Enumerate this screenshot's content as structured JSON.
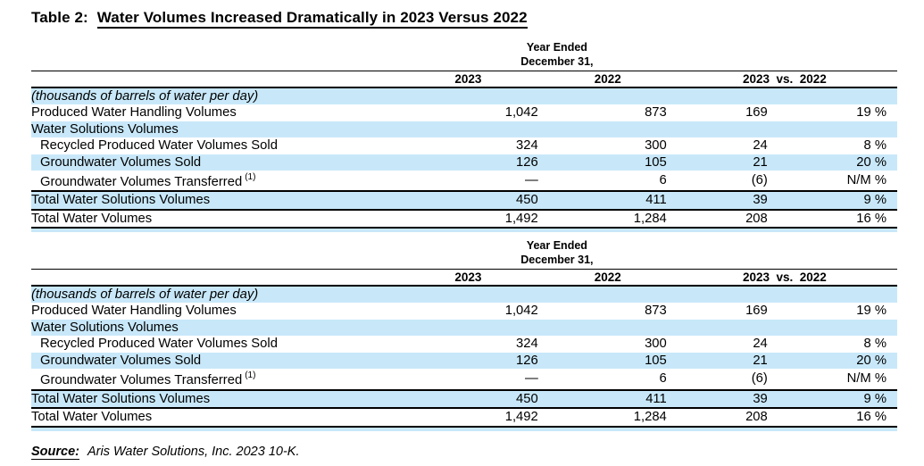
{
  "title": {
    "prefix": "Table 2:",
    "main": "Water Volumes Increased Dramatically in 2023 Versus 2022"
  },
  "table": {
    "period_header": {
      "line1": "Year Ended",
      "line2": "December 31,"
    },
    "year_columns": [
      "2023",
      "2022"
    ],
    "comparison_header": "2023  vs.  2022",
    "rows": [
      {
        "label": "(thousands of barrels of water per day)",
        "italic": true,
        "shade": true,
        "values": [
          "",
          "",
          "",
          ""
        ]
      },
      {
        "label": "Produced Water Handling Volumes",
        "values": [
          "1,042",
          "873",
          "169",
          "19 %"
        ]
      },
      {
        "label": "Water Solutions Volumes",
        "shade": true,
        "values": [
          "",
          "",
          "",
          ""
        ]
      },
      {
        "label": "Recycled Produced Water Volumes Sold",
        "indent": true,
        "values": [
          "324",
          "300",
          "24",
          "8 %"
        ]
      },
      {
        "label": "Groundwater Volumes Sold",
        "indent": true,
        "shade": true,
        "values": [
          "126",
          "105",
          "21",
          "20 %"
        ]
      },
      {
        "label": "Groundwater Volumes Transferred",
        "footnote": "(1)",
        "indent": true,
        "values": [
          "—",
          "6",
          "(6)",
          "N/M %"
        ]
      },
      {
        "label": "Total Water Solutions Volumes",
        "shade": true,
        "rule_top": true,
        "rule_bottom": true,
        "values": [
          "450",
          "411",
          "39",
          "9 %"
        ]
      },
      {
        "label": "Total Water Volumes",
        "rule_bottom_heavy": true,
        "values": [
          "1,492",
          "1,284",
          "208",
          "16 %"
        ]
      }
    ]
  },
  "source": {
    "label": "Source:",
    "text": "Aris Water Solutions, Inc. 2023 10-K."
  },
  "colors": {
    "row_shade": "#c8e8f9",
    "rule": "#000000"
  }
}
